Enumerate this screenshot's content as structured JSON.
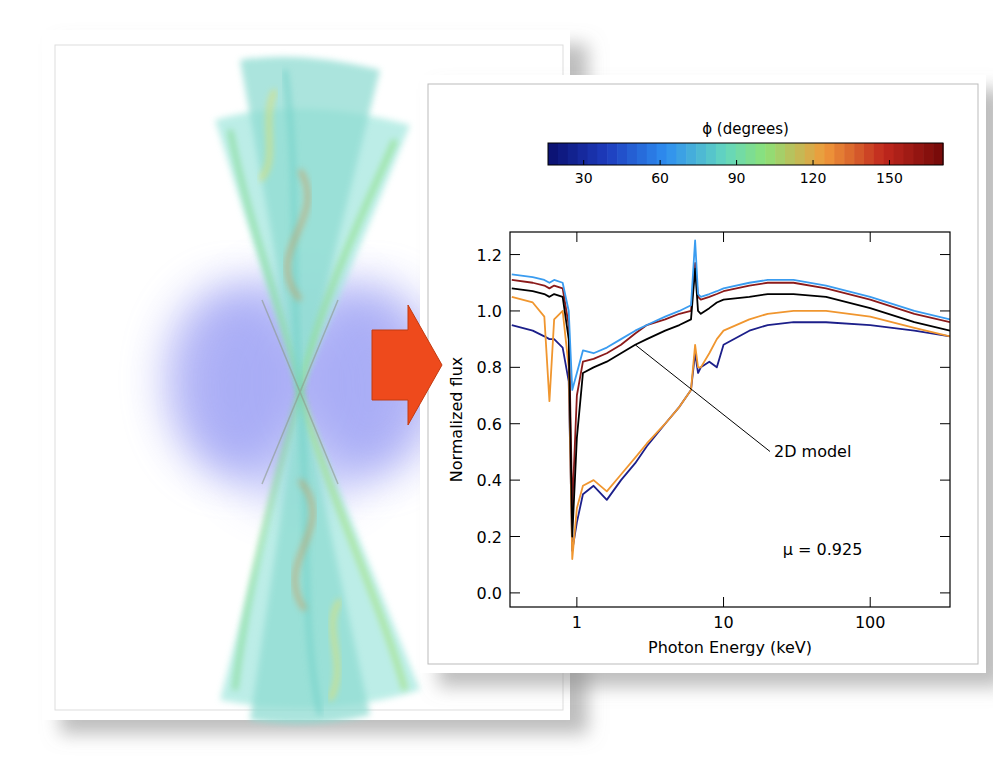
{
  "chart_data": {
    "type": "line",
    "colorbar": {
      "label": "ϕ (degrees)",
      "lim": [
        16,
        171
      ],
      "ticks": [
        30,
        60,
        90,
        120,
        150
      ]
    },
    "xlabel": "Photon Energy (keV)",
    "ylabel": "Normalized flux",
    "log": "x",
    "xlim": [
      0.35,
      350
    ],
    "xticks": [
      1,
      10,
      100
    ],
    "ylim": [
      -0.05,
      1.28
    ],
    "yticks": [
      {
        "value": 0,
        "label": "0.0"
      },
      0.2,
      0.4,
      0.6,
      0.8,
      {
        "value": 1,
        "label": "1.0"
      },
      1.2
    ],
    "x": [
      0.36,
      0.5,
      0.6,
      0.65,
      0.7,
      0.8,
      0.88,
      0.93,
      1.0,
      1.1,
      1.3,
      1.6,
      2,
      2.5,
      3,
      4,
      5,
      6,
      6.4,
      6.7,
      7,
      8,
      9,
      10,
      15,
      20,
      30,
      50,
      100,
      200,
      350
    ],
    "series": [
      {
        "color": "#1c1f8a",
        "values": [
          0.95,
          0.93,
          0.91,
          0.9,
          0.9,
          0.87,
          0.75,
          0.15,
          0.25,
          0.35,
          0.38,
          0.33,
          0.4,
          0.46,
          0.52,
          0.6,
          0.66,
          0.72,
          0.85,
          0.78,
          0.8,
          0.82,
          0.8,
          0.88,
          0.93,
          0.95,
          0.96,
          0.96,
          0.95,
          0.93,
          0.91
        ]
      },
      {
        "color": "#f0962f",
        "values": [
          1.05,
          1.03,
          0.98,
          0.68,
          0.97,
          1.0,
          0.8,
          0.12,
          0.3,
          0.38,
          0.4,
          0.36,
          0.42,
          0.48,
          0.53,
          0.6,
          0.66,
          0.72,
          0.88,
          0.8,
          0.8,
          0.85,
          0.9,
          0.93,
          0.97,
          0.99,
          1.0,
          1.0,
          0.98,
          0.94,
          0.91
        ]
      },
      {
        "color": "#8b1a1a",
        "values": [
          1.11,
          1.1,
          1.09,
          1.08,
          1.09,
          1.08,
          0.95,
          0.3,
          0.7,
          0.82,
          0.83,
          0.85,
          0.88,
          0.92,
          0.95,
          0.97,
          0.99,
          1.0,
          1.17,
          1.05,
          1.04,
          1.05,
          1.06,
          1.07,
          1.09,
          1.1,
          1.1,
          1.08,
          1.04,
          0.99,
          0.96
        ]
      },
      {
        "name": "2D model",
        "color": "#000000",
        "values": [
          1.08,
          1.07,
          1.06,
          1.05,
          1.06,
          1.05,
          0.9,
          0.2,
          0.55,
          0.78,
          0.8,
          0.82,
          0.85,
          0.88,
          0.9,
          0.93,
          0.95,
          0.97,
          1.15,
          1.0,
          0.99,
          1.01,
          1.03,
          1.04,
          1.05,
          1.06,
          1.06,
          1.05,
          1.01,
          0.96,
          0.93
        ]
      },
      {
        "color": "#3a9cf0",
        "values": [
          1.13,
          1.12,
          1.11,
          1.1,
          1.11,
          1.1,
          1.0,
          0.72,
          0.78,
          0.86,
          0.85,
          0.87,
          0.9,
          0.93,
          0.95,
          0.98,
          1.0,
          1.02,
          1.25,
          1.06,
          1.05,
          1.06,
          1.07,
          1.08,
          1.1,
          1.11,
          1.11,
          1.09,
          1.05,
          1.0,
          0.97
        ]
      }
    ],
    "annotations": [
      "μ = 0.925"
    ]
  }
}
